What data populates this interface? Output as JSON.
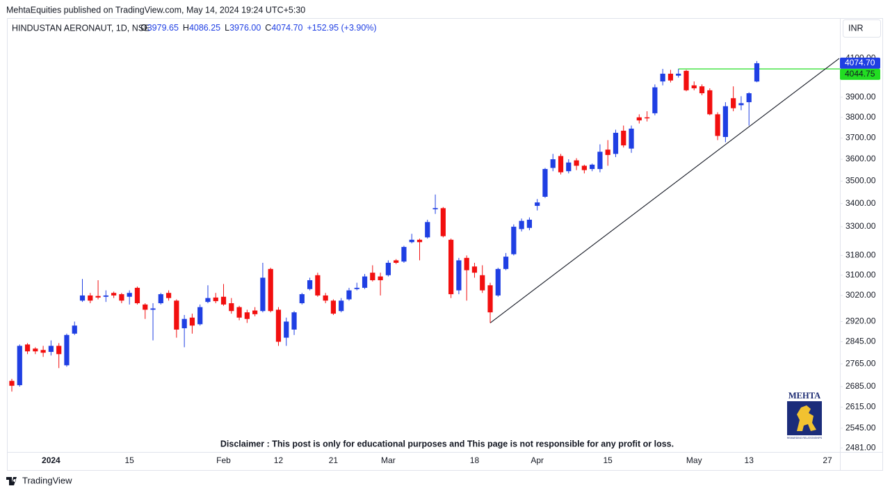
{
  "header": {
    "published": "MehtaEquities published on TradingView.com, May 14, 2024 19:24 UTC+5:30",
    "currency": "INR",
    "footer_brand": "TradingView"
  },
  "chart_data": {
    "type": "candlestick",
    "title": "HINDUSTAN AERONAUT, 1D, NSE",
    "ohlc_legend": [
      {
        "key": "O",
        "value": 3979.65,
        "label": "3979.65"
      },
      {
        "key": "H",
        "value": 4086.25,
        "label": "4086.25"
      },
      {
        "key": "L",
        "value": 3976.0,
        "label": "3976.00"
      },
      {
        "key": "C",
        "value": 4074.7,
        "label": "4074.70"
      }
    ],
    "change": "+152.95 (+3.90%)",
    "annotation": "Disclaimer : This post is only for educational purposes and This page is not responsible for any profit or loss.",
    "logo": {
      "name": "MEHTA",
      "tagline": "REWARDING RELATIONSHIPS"
    },
    "up_color": "#1f3fe3",
    "down_color": "#f20f0f",
    "log_scale": true,
    "grid": false,
    "categories": [
      null,
      null,
      null,
      null,
      null,
      "2024",
      null,
      null,
      null,
      null,
      null,
      null,
      null,
      null,
      null,
      "15",
      null,
      null,
      null,
      null,
      null,
      null,
      null,
      null,
      null,
      null,
      null,
      "Feb",
      null,
      null,
      null,
      null,
      null,
      null,
      "12",
      null,
      null,
      null,
      null,
      null,
      null,
      "21",
      null,
      null,
      null,
      null,
      null,
      null,
      "Mar",
      null,
      null,
      null,
      null,
      null,
      null,
      null,
      null,
      null,
      null,
      "18",
      null,
      null,
      null,
      null,
      null,
      null,
      null,
      "Apr",
      null,
      null,
      null,
      null,
      null,
      null,
      null,
      null,
      "15",
      null,
      null,
      null,
      null,
      null,
      null,
      null,
      null,
      null,
      null,
      "May",
      null,
      null,
      null,
      null,
      null,
      null,
      "13",
      null,
      null,
      null,
      null,
      null,
      null,
      null,
      null,
      null,
      "27"
    ],
    "open": [
      2705,
      2690,
      2835,
      2820,
      2815,
      2808,
      2830,
      2760,
      2875,
      3000,
      3020,
      3018,
      3015,
      3030,
      3025,
      3015,
      3050,
      2985,
      2965,
      2990,
      3030,
      3000,
      2895,
      2935,
      2910,
      2995,
      3012,
      3015,
      2990,
      2975,
      2955,
      2962,
      2960,
      3125,
      2965,
      2860,
      2890,
      2990,
      3045,
      3100,
      3020,
      3000,
      2960,
      3005,
      3045,
      3050,
      3110,
      3095,
      3100,
      3160,
      3155,
      3235,
      3245,
      3255,
      3375,
      3380,
      3245,
      3040,
      3170,
      3135,
      3100,
      3060,
      3020,
      3125,
      3185,
      3290,
      3295,
      3390,
      3430,
      3560,
      3615,
      3545,
      3595,
      3570,
      3555,
      3555,
      3645,
      3625,
      3735,
      3650,
      3800,
      3800,
      3820,
      3980,
      4020,
      4010,
      4035,
      3960,
      3955,
      3935,
      3815,
      3705,
      3895,
      3860,
      3875,
      3979.65,
      null,
      null,
      null,
      null,
      null,
      null,
      null,
      null,
      null
    ],
    "high": [
      2712,
      2835,
      2840,
      2825,
      2830,
      2850,
      2840,
      2875,
      2920,
      3085,
      3030,
      3080,
      3040,
      3035,
      3030,
      3040,
      3055,
      2990,
      2990,
      3030,
      3040,
      3005,
      2945,
      2950,
      2985,
      3060,
      3030,
      3065,
      3010,
      2980,
      2965,
      2975,
      3150,
      3130,
      2975,
      2935,
      2960,
      3030,
      3090,
      3110,
      3030,
      3005,
      3010,
      3050,
      3070,
      3105,
      3140,
      3110,
      3160,
      3165,
      3220,
      3270,
      3250,
      3330,
      3440,
      3385,
      3250,
      3170,
      3180,
      3150,
      3140,
      3070,
      3130,
      3190,
      3310,
      3335,
      3340,
      3420,
      3560,
      3625,
      3625,
      3600,
      3605,
      3575,
      3580,
      3670,
      3690,
      3740,
      3760,
      3760,
      3815,
      3830,
      3965,
      4045,
      4040,
      4045,
      4040,
      3980,
      3965,
      3945,
      3825,
      3875,
      3955,
      3905,
      3925,
      4086.25,
      null,
      null,
      null,
      null,
      null,
      null,
      null,
      null,
      null
    ],
    "low": [
      2668,
      2685,
      2800,
      2800,
      2790,
      2795,
      2750,
      2755,
      2870,
      2995,
      2990,
      3005,
      2995,
      3010,
      2990,
      2985,
      2985,
      2930,
      2850,
      2985,
      3000,
      2860,
      2825,
      2875,
      2905,
      2990,
      2990,
      2980,
      2950,
      2925,
      2915,
      2940,
      2955,
      2955,
      2830,
      2830,
      2870,
      2985,
      3040,
      3015,
      2990,
      2945,
      2955,
      3000,
      3040,
      3045,
      3075,
      3020,
      3095,
      3145,
      3150,
      3230,
      3160,
      3250,
      3355,
      3255,
      3010,
      3025,
      3000,
      3090,
      3030,
      2915,
      3015,
      3120,
      3180,
      3280,
      3285,
      3370,
      3425,
      3545,
      3530,
      3535,
      3550,
      3535,
      3545,
      3540,
      3570,
      3610,
      3655,
      3630,
      3770,
      3780,
      3810,
      3960,
      3975,
      4000,
      3930,
      3935,
      3910,
      3810,
      3690,
      3680,
      3830,
      3835,
      3760,
      3976,
      null,
      null,
      null,
      null,
      null,
      null,
      null,
      null,
      null
    ],
    "close": [
      2688,
      2830,
      2810,
      2810,
      2805,
      2830,
      2800,
      2870,
      2905,
      3020,
      3000,
      3012,
      3020,
      3020,
      3000,
      3030,
      2990,
      2965,
      2970,
      3025,
      3010,
      2890,
      2930,
      2905,
      2975,
      3010,
      2998,
      2985,
      2960,
      2935,
      2930,
      2948,
      3090,
      2960,
      2845,
      2920,
      2955,
      3025,
      3080,
      3020,
      3000,
      2950,
      3000,
      3040,
      3050,
      3095,
      3080,
      3080,
      3150,
      3150,
      3215,
      3245,
      3235,
      3320,
      3380,
      3260,
      3025,
      3160,
      3120,
      3110,
      3040,
      2955,
      3125,
      3175,
      3300,
      3325,
      3330,
      3405,
      3555,
      3600,
      3540,
      3585,
      3570,
      3550,
      3575,
      3635,
      3620,
      3725,
      3665,
      3745,
      3785,
      3795,
      3950,
      4020,
      3985,
      4020,
      3935,
      3945,
      3920,
      3815,
      3710,
      3855,
      3845,
      3870,
      3920,
      4074.7,
      null,
      null,
      null,
      null,
      null,
      null,
      null,
      null,
      null
    ],
    "last_price": {
      "value": 4074.7,
      "label": "4074.70"
    },
    "level_line": {
      "value": 4044.75,
      "label": "4044.75",
      "start": 85,
      "color": "#22dd22"
    },
    "trendline": {
      "x": [
        61,
        105.5
      ],
      "y": [
        2915,
        4100
      ],
      "color": "#131722"
    },
    "ylim": [
      2468,
      4319
    ],
    "yticks": [
      {
        "value": 4100,
        "label": "4100.00"
      },
      {
        "value": 3900,
        "label": "3900.00"
      },
      {
        "value": 3800,
        "label": "3800.00"
      },
      {
        "value": 3700,
        "label": "3700.00"
      },
      {
        "value": 3600,
        "label": "3600.00"
      },
      {
        "value": 3500,
        "label": "3500.00"
      },
      {
        "value": 3400,
        "label": "3400.00"
      },
      {
        "value": 3300,
        "label": "3300.00"
      },
      {
        "value": 3180,
        "label": "3180.00"
      },
      {
        "value": 3100,
        "label": "3100.00"
      },
      {
        "value": 3020,
        "label": "3020.00"
      },
      {
        "value": 2920,
        "label": "2920.00"
      },
      {
        "value": 2845,
        "label": "2845.00"
      },
      {
        "value": 2765,
        "label": "2765.00"
      },
      {
        "value": 2685,
        "label": "2685.00"
      },
      {
        "value": 2615,
        "label": "2615.00"
      },
      {
        "value": 2545,
        "label": "2545.00"
      },
      {
        "value": 2481,
        "label": "2481.00"
      }
    ]
  }
}
